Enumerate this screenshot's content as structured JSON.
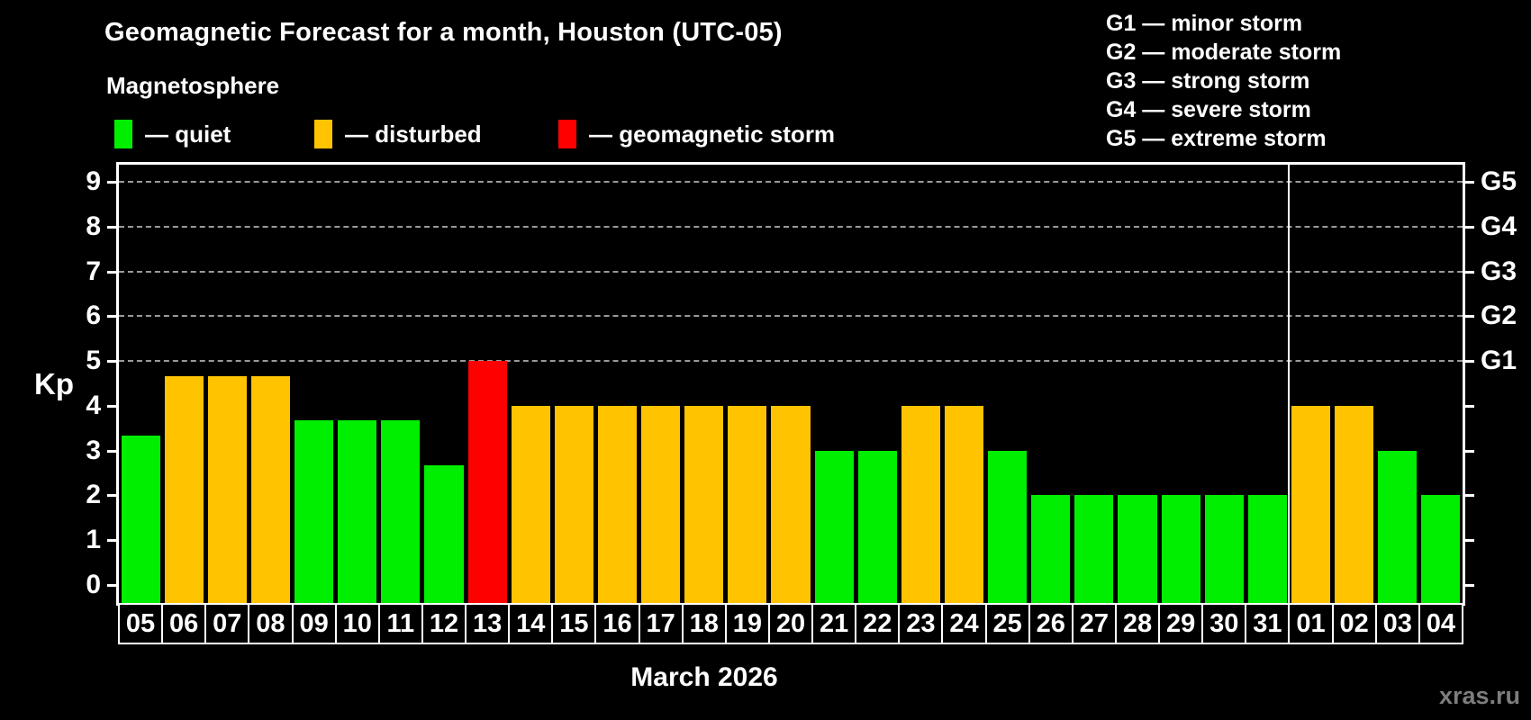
{
  "page": {
    "title": "Geomagnetic Forecast for a month, Houston (UTC-05)",
    "subtitle": "Magnetosphere",
    "xlabel": "March 2026",
    "watermark": "xras.ru"
  },
  "legend": {
    "items": [
      {
        "key": "quiet",
        "label": "— quiet",
        "color": "#00ee00"
      },
      {
        "key": "disturbed",
        "label": "— disturbed",
        "color": "#ffc300"
      },
      {
        "key": "storm",
        "label": "— geomagnetic storm",
        "color": "#ff0000"
      }
    ]
  },
  "g_legend": {
    "lines": [
      "G1 — minor storm",
      "G2 — moderate storm",
      "G3 — strong storm",
      "G4 — severe storm",
      "G5 — extreme storm"
    ]
  },
  "chart_data": {
    "type": "bar",
    "title": "Geomagnetic Forecast for a month, Houston (UTC-05)",
    "ylabel": "Kp",
    "xlabel": "March 2026",
    "ylim": [
      0,
      9
    ],
    "y_ticks": [
      0,
      1,
      2,
      3,
      4,
      5,
      6,
      7,
      8,
      9
    ],
    "grid_dashed_at_kp": [
      5,
      6,
      7,
      8,
      9
    ],
    "right_axis_labels": [
      {
        "kp": 5,
        "label": "G1"
      },
      {
        "kp": 6,
        "label": "G2"
      },
      {
        "kp": 7,
        "label": "G3"
      },
      {
        "kp": 8,
        "label": "G4"
      },
      {
        "kp": 9,
        "label": "G5"
      }
    ],
    "legend_position": "top-left",
    "grid": "dashed horizontal at storm levels only",
    "month_divider_after_index": 26,
    "colors": {
      "quiet": "#00ee00",
      "disturbed": "#ffc300",
      "storm": "#ff0000"
    },
    "days": [
      {
        "day": "05",
        "kp": 3.33,
        "state": "quiet"
      },
      {
        "day": "06",
        "kp": 4.67,
        "state": "disturbed"
      },
      {
        "day": "07",
        "kp": 4.67,
        "state": "disturbed"
      },
      {
        "day": "08",
        "kp": 4.67,
        "state": "disturbed"
      },
      {
        "day": "09",
        "kp": 3.67,
        "state": "quiet"
      },
      {
        "day": "10",
        "kp": 3.67,
        "state": "quiet"
      },
      {
        "day": "11",
        "kp": 3.67,
        "state": "quiet"
      },
      {
        "day": "12",
        "kp": 2.67,
        "state": "quiet"
      },
      {
        "day": "13",
        "kp": 5.0,
        "state": "storm"
      },
      {
        "day": "14",
        "kp": 4.0,
        "state": "disturbed"
      },
      {
        "day": "15",
        "kp": 4.0,
        "state": "disturbed"
      },
      {
        "day": "16",
        "kp": 4.0,
        "state": "disturbed"
      },
      {
        "day": "17",
        "kp": 4.0,
        "state": "disturbed"
      },
      {
        "day": "18",
        "kp": 4.0,
        "state": "disturbed"
      },
      {
        "day": "19",
        "kp": 4.0,
        "state": "disturbed"
      },
      {
        "day": "20",
        "kp": 4.0,
        "state": "disturbed"
      },
      {
        "day": "21",
        "kp": 3.0,
        "state": "quiet"
      },
      {
        "day": "22",
        "kp": 3.0,
        "state": "quiet"
      },
      {
        "day": "23",
        "kp": 4.0,
        "state": "disturbed"
      },
      {
        "day": "24",
        "kp": 4.0,
        "state": "disturbed"
      },
      {
        "day": "25",
        "kp": 3.0,
        "state": "quiet"
      },
      {
        "day": "26",
        "kp": 2.0,
        "state": "quiet"
      },
      {
        "day": "27",
        "kp": 2.0,
        "state": "quiet"
      },
      {
        "day": "28",
        "kp": 2.0,
        "state": "quiet"
      },
      {
        "day": "29",
        "kp": 2.0,
        "state": "quiet"
      },
      {
        "day": "30",
        "kp": 2.0,
        "state": "quiet"
      },
      {
        "day": "31",
        "kp": 2.0,
        "state": "quiet"
      },
      {
        "day": "01",
        "kp": 4.0,
        "state": "disturbed"
      },
      {
        "day": "02",
        "kp": 4.0,
        "state": "disturbed"
      },
      {
        "day": "03",
        "kp": 3.0,
        "state": "quiet"
      },
      {
        "day": "04",
        "kp": 2.0,
        "state": "quiet"
      }
    ]
  }
}
